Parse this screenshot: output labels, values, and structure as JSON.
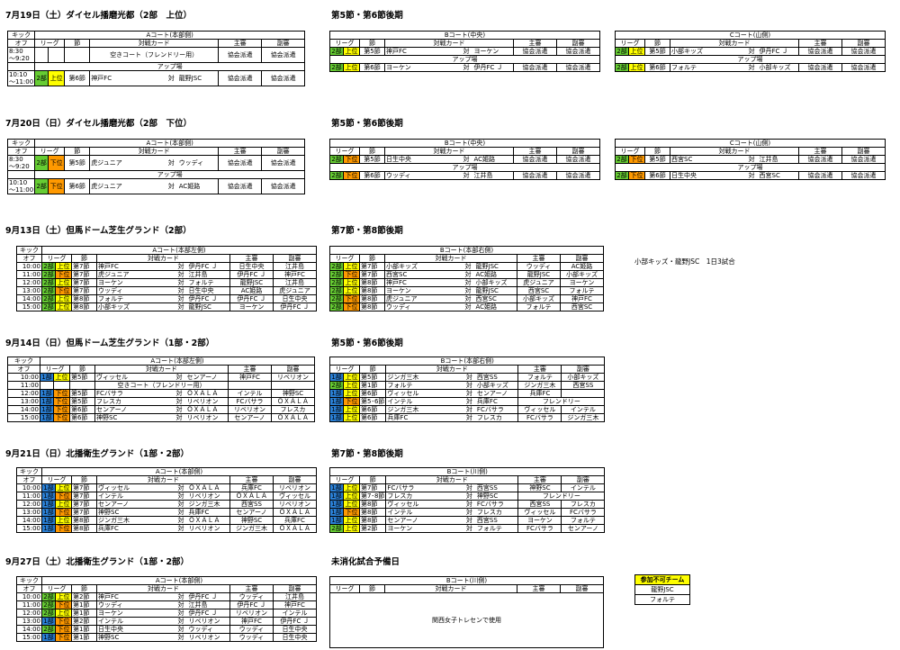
{
  "labels": {
    "kick1": "キック",
    "kick2": "オフ",
    "league": "リーグ",
    "setsu": "節",
    "card": "対戦カード",
    "shushin": "主審",
    "fukushin": "副審",
    "vs": "対",
    "warmup": "アップ場"
  },
  "sections": [
    {
      "title": "7月19日（土）ダイセル播磨光都（2部　上位）",
      "round": "第5節・第6節後期",
      "type": "three",
      "courts": [
        {
          "name": "Aコート(本部側)",
          "rows": [
            {
              "time": "8:30\n～9:20",
              "lg": "",
              "div": "",
              "setsu": "",
              "home": "",
              "away": "",
              "single": "空きコート（フレンドリー用）",
              "ref": "協会派遣",
              "asst": "協会派遣"
            },
            {
              "time": "10:10\n～11:00",
              "lg": "2部",
              "div": "上位",
              "setsu": "第6節",
              "home": "神戸FC",
              "away": "龍野JSC",
              "ref": "協会派遣",
              "asst": "協会派遣"
            }
          ]
        },
        {
          "name": "Bコート(中央)",
          "rows": [
            {
              "lg": "2部",
              "div": "上位",
              "setsu": "第5節",
              "home": "神戸FC",
              "away": "ヨーケン",
              "ref": "協会派遣",
              "asst": "協会派遣"
            },
            {
              "lg": "2部",
              "div": "上位",
              "setsu": "第6節",
              "home": "ヨーケン",
              "away": "伊丹FC Ｊ",
              "ref": "協会派遣",
              "asst": "協会派遣"
            }
          ]
        },
        {
          "name": "Cコート(山側)",
          "rows": [
            {
              "lg": "2部",
              "div": "上位",
              "setsu": "第5節",
              "home": "小部キッズ",
              "away": "伊丹FC Ｊ",
              "ref": "協会派遣",
              "asst": "協会派遣"
            },
            {
              "lg": "2部",
              "div": "上位",
              "setsu": "第6節",
              "home": "フォルテ",
              "away": "小部キッズ",
              "ref": "協会派遣",
              "asst": "協会派遣"
            }
          ]
        }
      ]
    },
    {
      "title": "7月20日（日）ダイセル播磨光都（2部　下位）",
      "round": "第5節・第6節後期",
      "type": "three",
      "courts": [
        {
          "name": "Aコート(本部側)",
          "rows": [
            {
              "time": "8:30\n～9:20",
              "lg": "2部",
              "div": "下位",
              "setsu": "第5節",
              "home": "虎ジュニア",
              "away": "ウッディ",
              "ref": "協会派遣",
              "asst": "協会派遣"
            },
            {
              "time": "10:10\n～11:00",
              "lg": "2部",
              "div": "下位",
              "setsu": "第6節",
              "home": "虎ジュニア",
              "away": "AC姫路",
              "ref": "協会派遣",
              "asst": "協会派遣"
            }
          ]
        },
        {
          "name": "Bコート(中央)",
          "rows": [
            {
              "lg": "2部",
              "div": "下位",
              "setsu": "第5節",
              "home": "日生中央",
              "away": "AC姫路",
              "ref": "協会派遣",
              "asst": "協会派遣"
            },
            {
              "lg": "2部",
              "div": "下位",
              "setsu": "第6節",
              "home": "ウッディ",
              "away": "江井島",
              "ref": "協会派遣",
              "asst": "協会派遣"
            }
          ]
        },
        {
          "name": "Cコート(山側)",
          "rows": [
            {
              "lg": "2部",
              "div": "下位",
              "setsu": "第5節",
              "home": "西宮SC",
              "away": "江井島",
              "ref": "協会派遣",
              "asst": "協会派遣"
            },
            {
              "lg": "2部",
              "div": "下位",
              "setsu": "第6節",
              "home": "日生中央",
              "away": "西宮SC",
              "ref": "協会派遣",
              "asst": "協会派遣"
            }
          ]
        }
      ]
    },
    {
      "title": "9月13日（土）但馬ドーム芝生グランド（2部）",
      "round": "第7節・第8節後期",
      "type": "two",
      "note": "小部キッズ・龍野JSC　1日3試合",
      "courts": [
        {
          "name": "Aコート(本部左側)",
          "rows": [
            {
              "time": "10:00",
              "lg": "2部",
              "div": "上位",
              "setsu": "第7節",
              "home": "神戸FC",
              "away": "伊丹FC Ｊ",
              "ref": "日生中央",
              "asst": "江井島"
            },
            {
              "time": "11:00",
              "lg": "2部",
              "div": "下位",
              "setsu": "第7節",
              "home": "虎ジュニア",
              "away": "江井島",
              "ref": "伊丹FC Ｊ",
              "asst": "神戸FC"
            },
            {
              "time": "12:00",
              "lg": "2部",
              "div": "上位",
              "setsu": "第7節",
              "home": "ヨーケン",
              "away": "フォルテ",
              "ref": "龍野JSC",
              "asst": "江井島"
            },
            {
              "time": "13:00",
              "lg": "2部",
              "div": "下位",
              "setsu": "第7節",
              "home": "ウッディ",
              "away": "日生中央",
              "ref": "AC姫路",
              "asst": "虎ジュニア"
            },
            {
              "time": "14:00",
              "lg": "2部",
              "div": "上位",
              "setsu": "第8節",
              "home": "フォルテ",
              "away": "伊丹FC Ｊ",
              "ref": "伊丹FC Ｊ",
              "asst": "日生中央"
            },
            {
              "time": "15:00",
              "lg": "2部",
              "div": "上位",
              "setsu": "第8節",
              "home": "小部キッズ",
              "away": "龍野JSC",
              "ref": "ヨーケン",
              "asst": "伊丹FC Ｊ"
            }
          ]
        },
        {
          "name": "Bコート(本部右側)",
          "rows": [
            {
              "lg": "2部",
              "div": "上位",
              "setsu": "第7節",
              "home": "小部キッズ",
              "away": "龍野JSC",
              "ref": "ウッディ",
              "asst": "AC姫路"
            },
            {
              "lg": "2部",
              "div": "下位",
              "setsu": "第7節",
              "home": "西宮SC",
              "away": "AC姫路",
              "ref": "龍野JSC",
              "asst": "小部キッズ"
            },
            {
              "lg": "2部",
              "div": "上位",
              "setsu": "第8節",
              "home": "神戸FC",
              "away": "小部キッズ",
              "ref": "虎ジュニア",
              "asst": "ヨーケン"
            },
            {
              "lg": "2部",
              "div": "上位",
              "setsu": "第8節",
              "home": "ヨーケン",
              "away": "龍野JSC",
              "ref": "西宮SC",
              "asst": "フォルテ"
            },
            {
              "lg": "2部",
              "div": "下位",
              "setsu": "第8節",
              "home": "虎ジュニア",
              "away": "西宮SC",
              "ref": "小部キッズ",
              "asst": "神戸FC"
            },
            {
              "lg": "2部",
              "div": "下位",
              "setsu": "第8節",
              "home": "ウッディ",
              "away": "AC姫路",
              "ref": "フォルテ",
              "asst": "西宮SC"
            }
          ]
        }
      ]
    },
    {
      "title": "9月14日（日）但馬ドーム芝生グランド（1部・2部）",
      "round": "第5節・第6節後期",
      "type": "two",
      "courts": [
        {
          "name": "Aコート(本部左側)",
          "rows": [
            {
              "time": "10:00",
              "lg": "1部",
              "div": "上位",
              "setsu": "第5節",
              "home": "ヴィッセル",
              "away": "センアーノ",
              "ref": "神戸FC",
              "asst": "リベリオン"
            },
            {
              "time": "11:00",
              "lg": "",
              "div": "",
              "setsu": "",
              "home": "",
              "away": "",
              "single": "空きコート（フレンドリー用）",
              "ref": "",
              "asst": ""
            },
            {
              "time": "12:00",
              "lg": "1部",
              "div": "下位",
              "setsu": "第5節",
              "home": "FCバサラ",
              "away": "ＯＸＡＬＡ",
              "ref": "インテル",
              "asst": "神野SC"
            },
            {
              "time": "13:00",
              "lg": "1部",
              "div": "下位",
              "setsu": "第5節",
              "home": "フレスカ",
              "away": "リベリオン",
              "ref": "FCバサラ",
              "asst": "ＯＸＡＬＡ"
            },
            {
              "time": "14:00",
              "lg": "1部",
              "div": "下位",
              "setsu": "第6節",
              "home": "センアーノ",
              "away": "ＯＸＡＬＡ",
              "ref": "リベリオン",
              "asst": "フレスカ"
            },
            {
              "time": "15:00",
              "lg": "1部",
              "div": "下位",
              "setsu": "第6節",
              "home": "神野SC",
              "away": "リベリオン",
              "ref": "センアーノ",
              "asst": "ＯＸＡＬＡ"
            }
          ]
        },
        {
          "name": "Bコート(本部右側)",
          "rows": [
            {
              "lg": "1部",
              "div": "上位",
              "setsu": "第5節",
              "home": "ジンガ三木",
              "away": "西宮SS",
              "ref": "フォルテ",
              "asst": "小部キッズ"
            },
            {
              "lg": "2部",
              "div": "上位",
              "setsu": "第1節",
              "home": "フォルテ",
              "away": "小部キッズ",
              "ref": "ジンガ三木",
              "asst": "西宮SS"
            },
            {
              "lg": "1部",
              "div": "上位",
              "setsu": "第6節",
              "home": "ヴィッセル",
              "away": "センアーノ",
              "ref": "兵庫FC",
              "asst": ""
            },
            {
              "lg": "1部",
              "div": "下位",
              "setsu": "第5･6節",
              "home": "インテル",
              "away": "兵庫FC",
              "single_ref": "フレンドリー",
              "ref": "",
              "asst": ""
            },
            {
              "lg": "1部",
              "div": "上位",
              "setsu": "第6節",
              "home": "ジンガ三木",
              "away": "FCバサラ",
              "ref": "ヴィッセル",
              "asst": "インテル"
            },
            {
              "lg": "1部",
              "div": "上位",
              "setsu": "第6節",
              "home": "兵庫FC",
              "away": "フレスカ",
              "ref": "FCバサラ",
              "asst": "ジンガ三木"
            }
          ]
        }
      ]
    },
    {
      "title": "9月21日（日）北播衛生グランド（1部・2部）",
      "round": "第7節・第8節後期",
      "type": "two",
      "courts": [
        {
          "name": "Aコート(本部側)",
          "rows": [
            {
              "time": "10:00",
              "lg": "1部",
              "div": "上位",
              "setsu": "第7節",
              "home": "ヴィッセル",
              "away": "ＯＸＡＬＡ",
              "ref": "兵庫FC",
              "asst": "リベリオン"
            },
            {
              "time": "11:00",
              "lg": "1部",
              "div": "下位",
              "setsu": "第7節",
              "home": "インテル",
              "away": "リベリオン",
              "ref": "ＯＸＡＬＡ",
              "asst": "ヴィッセル"
            },
            {
              "time": "12:00",
              "lg": "1部",
              "div": "上位",
              "setsu": "第7節",
              "home": "センアーノ",
              "away": "ジンガ三木",
              "ref": "西宮SS",
              "asst": "リベリオン"
            },
            {
              "time": "13:00",
              "lg": "1部",
              "div": "下位",
              "setsu": "第7節",
              "home": "神野SC",
              "away": "兵庫FC",
              "ref": "センアーノ",
              "asst": "ＯＸＡＬＡ"
            },
            {
              "time": "14:00",
              "lg": "1部",
              "div": "上位",
              "setsu": "第8節",
              "home": "ジンガ三木",
              "away": "ＯＸＡＬＡ",
              "ref": "神野SC",
              "asst": "兵庫FC"
            },
            {
              "time": "15:00",
              "lg": "1部",
              "div": "下位",
              "setsu": "第8節",
              "home": "兵庫FC",
              "away": "リベリオン",
              "ref": "ジンガ三木",
              "asst": "ＯＸＡＬＡ"
            }
          ]
        },
        {
          "name": "Bコート(川側)",
          "rows": [
            {
              "lg": "1部",
              "div": "上位",
              "setsu": "第7節",
              "home": "FCバサラ",
              "away": "西宮SS",
              "ref": "神野SC",
              "asst": "インテル"
            },
            {
              "lg": "1部",
              "div": "上位",
              "setsu": "第7･8節",
              "home": "フレスカ",
              "away": "神野SC",
              "single_ref": "フレンドリー",
              "ref": "",
              "asst": ""
            },
            {
              "lg": "1部",
              "div": "上位",
              "setsu": "第8節",
              "home": "ヴィッセル",
              "away": "FCバサラ",
              "ref": "西宮SS",
              "asst": "フレスカ"
            },
            {
              "lg": "1部",
              "div": "下位",
              "setsu": "第8節",
              "home": "インテル",
              "away": "フレスカ",
              "ref": "ヴィッセル",
              "asst": "FCバサラ"
            },
            {
              "lg": "1部",
              "div": "上位",
              "setsu": "第8節",
              "home": "センアーノ",
              "away": "西宮SS",
              "ref": "ヨーケン",
              "asst": "フォルテ"
            },
            {
              "lg": "2部",
              "div": "上位",
              "setsu": "第2節",
              "home": "ヨーケン",
              "away": "フォルテ",
              "ref": "FCバサラ",
              "asst": "センアーノ"
            }
          ]
        }
      ]
    },
    {
      "title": "9月27日（土）北播衛生グランド（1部・2部）",
      "round": "未消化試合予備日",
      "type": "two",
      "courts": [
        {
          "name": "Aコート(本部側)",
          "rows": [
            {
              "time": "10:00",
              "lg": "2部",
              "div": "上位",
              "setsu": "第2節",
              "home": "神戸FC",
              "away": "伊丹FC Ｊ",
              "ref": "ウッディ",
              "asst": "江井島"
            },
            {
              "time": "11:00",
              "lg": "2部",
              "div": "下位",
              "setsu": "第1節",
              "home": "ウッディ",
              "away": "江井島",
              "ref": "伊丹FC Ｊ",
              "asst": "神戸FC"
            },
            {
              "time": "12:00",
              "lg": "2部",
              "div": "上位",
              "setsu": "第1節",
              "home": "ヨーケン",
              "away": "伊丹FC Ｊ",
              "ref": "リベリオン",
              "asst": "インテル"
            },
            {
              "time": "13:00",
              "lg": "1部",
              "div": "下位",
              "setsu": "第2節",
              "home": "インテル",
              "away": "リベリオン",
              "ref": "神戸FC",
              "asst": "伊丹FC Ｊ"
            },
            {
              "time": "14:00",
              "lg": "2部",
              "div": "下位",
              "setsu": "第1節",
              "home": "日生中央",
              "away": "ウッディ",
              "ref": "ウッディ",
              "asst": "日生中央"
            },
            {
              "time": "15:00",
              "lg": "1部",
              "div": "下位",
              "setsu": "第1節",
              "home": "神野SC",
              "away": "リベリオン",
              "ref": "ウッディ",
              "asst": "日生中央"
            }
          ]
        },
        {
          "name": "Bコート(川側)",
          "empty": true,
          "empty_text": "関西女子トレセンで使用",
          "rows": []
        }
      ]
    }
  ],
  "legend": {
    "title": "参加不可チーム",
    "items": [
      "龍野JSC",
      "フォルテ"
    ]
  }
}
